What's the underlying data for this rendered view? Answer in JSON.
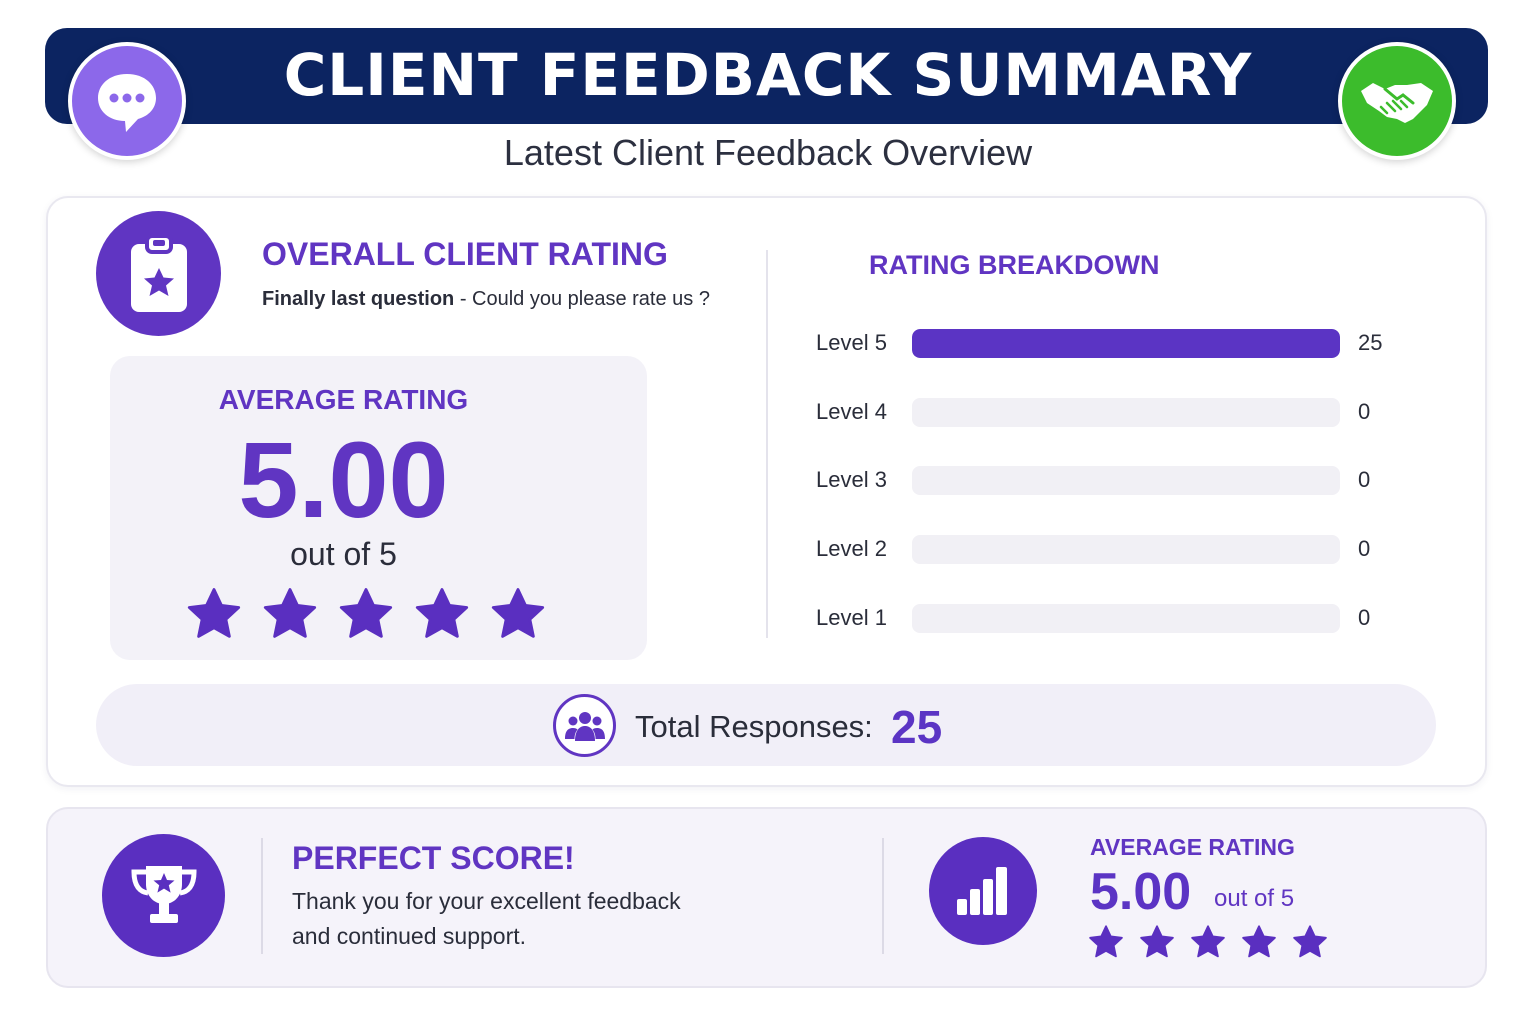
{
  "header": {
    "title": "CLIENT FEEDBACK SUMMARY",
    "subtitle": "Latest Client Feedback Overview",
    "left_icon": "chat-bubble-icon",
    "right_icon": "handshake-icon"
  },
  "overall": {
    "icon": "clipboard-star-icon",
    "title": "OVERALL CLIENT RATING",
    "question_bold": "Finally last question",
    "question_rest": " - Could you please rate us ?",
    "average_label": "AVERAGE RATING",
    "average_value": "5.00",
    "out_of": "out of 5",
    "stars_filled": 5,
    "stars_total": 5
  },
  "breakdown": {
    "title": "RATING BREAKDOWN",
    "max": 25,
    "levels": [
      {
        "label": "Level 5",
        "count": "25",
        "value": 25
      },
      {
        "label": "Level 4",
        "count": "0",
        "value": 0
      },
      {
        "label": "Level 3",
        "count": "0",
        "value": 0
      },
      {
        "label": "Level 2",
        "count": "0",
        "value": 0
      },
      {
        "label": "Level 1",
        "count": "0",
        "value": 0
      }
    ]
  },
  "total": {
    "icon": "people-group-icon",
    "label": "Total Responses:",
    "value": "25"
  },
  "footer": {
    "trophy_icon": "trophy-star-icon",
    "perfect_title": "PERFECT SCORE!",
    "perfect_line1": "Thank you for your excellent feedback",
    "perfect_line2": "and continued support.",
    "chart_icon": "bar-chart-icon",
    "avg_label": "AVERAGE RATING",
    "avg_value": "5.00",
    "avg_out_of": "out of 5",
    "stars_filled": 5
  },
  "colors": {
    "header_bg": "#0c2461",
    "accent_purple": "#6035c2",
    "chat_badge": "#8c68ea",
    "handshake_badge": "#3cbc2c",
    "panel_bg": "#f3f2f8"
  }
}
